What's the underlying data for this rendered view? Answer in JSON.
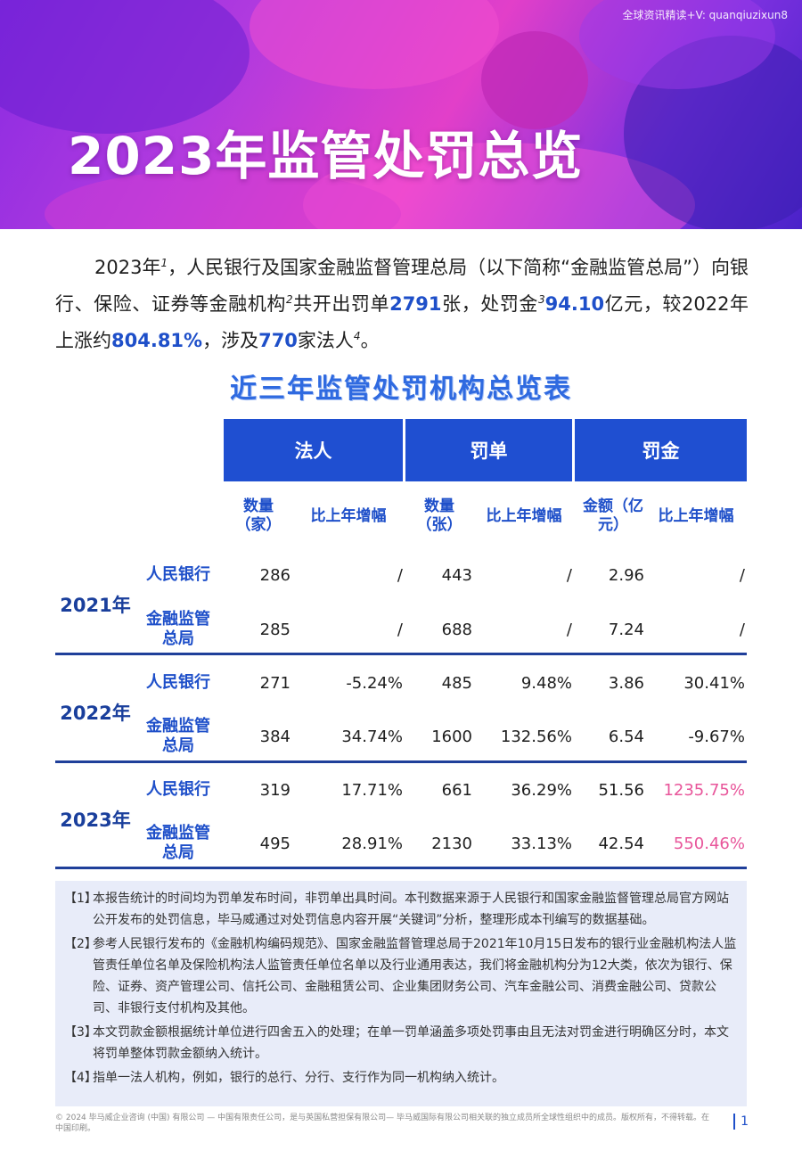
{
  "banner": {
    "title": "2023年监管处罚总览",
    "watermark": "全球资讯精读+V: quanqiuzixun8"
  },
  "intro": {
    "p1": "2023年",
    "p2": "，人民银行及国家金融监督管理总局（以下简称“金融监管总局”）向银行、保险、证券等金融机构",
    "p3": "共开出罚单",
    "tickets": "2791",
    "p4": "张，处罚金",
    "amount": "94.10",
    "p5": "亿元，较2022年上涨约",
    "growth": "804.81%",
    "p6": "，涉及",
    "entities": "770",
    "p7": "家法人",
    "p8": "。",
    "sup1": "1",
    "sup2": "2",
    "sup3": "3",
    "sup4": "4"
  },
  "table": {
    "title": "近三年监管处罚机构总览表",
    "groups": [
      "法人",
      "罚单",
      "罚金"
    ],
    "sub": {
      "count_entity": "数量（家）",
      "count_ticket": "数量（张）",
      "amount": "金额（亿元）",
      "growth": "比上年增幅"
    },
    "rows": [
      {
        "year": "2021年",
        "inst": "人民银行",
        "c1": "286",
        "g1": "/",
        "c2": "443",
        "g2": "/",
        "c3": "2.96",
        "g3": "/"
      },
      {
        "year": "",
        "inst": "金融监管总局",
        "c1": "285",
        "g1": "/",
        "c2": "688",
        "g2": "/",
        "c3": "7.24",
        "g3": "/"
      },
      {
        "year": "2022年",
        "inst": "人民银行",
        "c1": "271",
        "g1": "-5.24%",
        "c2": "485",
        "g2": "9.48%",
        "c3": "3.86",
        "g3": "30.41%"
      },
      {
        "year": "",
        "inst": "金融监管总局",
        "c1": "384",
        "g1": "34.74%",
        "c2": "1600",
        "g2": "132.56%",
        "c3": "6.54",
        "g3": "-9.67%"
      },
      {
        "year": "2023年",
        "inst": "人民银行",
        "c1": "319",
        "g1": "17.71%",
        "c2": "661",
        "g2": "36.29%",
        "c3": "51.56",
        "g3": "1235.75%"
      },
      {
        "year": "",
        "inst": "金融监管总局",
        "c1": "495",
        "g1": "28.91%",
        "c2": "2130",
        "g2": "33.13%",
        "c3": "42.54",
        "g3": "550.46%"
      }
    ]
  },
  "notes": [
    {
      "num": "【1】",
      "text": "本报告统计的时间均为罚单发布时间，非罚单出具时间。本刊数据来源于人民银行和国家金融监督管理总局官方网站公开发布的处罚信息，毕马威通过对处罚信息内容开展“关键词”分析，整理形成本刊编写的数据基础。"
    },
    {
      "num": "【2】",
      "text": "参考人民银行发布的《金融机构编码规范》、国家金融监督管理总局于2021年10月15日发布的银行业金融机构法人监管责任单位名单及保险机构法人监管责任单位名单以及行业通用表达，我们将金融机构分为12大类，依次为银行、保险、证券、资产管理公司、信托公司、金融租赁公司、企业集团财务公司、汽车金融公司、消费金融公司、贷款公司、非银行支付机构及其他。"
    },
    {
      "num": "【3】",
      "text": "本文罚款金额根据统计单位进行四舍五入的处理；在单一罚单涵盖多项处罚事由且无法对罚金进行明确区分时，本文将罚单整体罚款金额纳入统计。"
    },
    {
      "num": "【4】",
      "text": "指单一法人机构，例如，银行的总行、分行、支行作为同一机构纳入统计。"
    }
  ],
  "footer": {
    "text": "© 2024 毕马威企业咨询 (中国) 有限公司 — 中国有限责任公司，是与英国私营担保有限公司— 毕马威国际有限公司相关联的独立成员所全球性组织中的成员。版权所有，不得转载。在中国印刷。",
    "page": "1"
  },
  "colors": {
    "accent": "#1f4fd1",
    "highlight": "#1e4fc9",
    "pink": "#e8559a",
    "notes_bg": "#e8ecf9"
  }
}
